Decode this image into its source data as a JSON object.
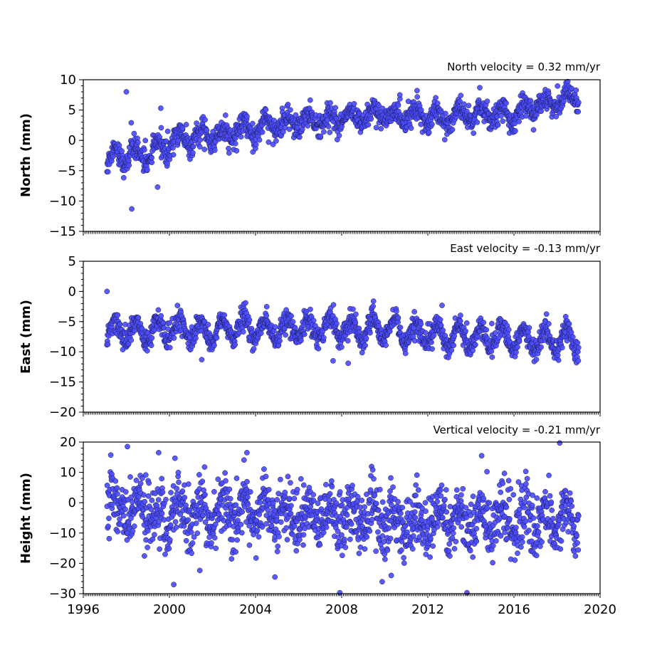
{
  "style": {
    "marker_fill": "#4c4cff",
    "marker_edge": "#1a1a4a",
    "background": "#ffffff"
  },
  "chart_data": [
    {
      "type": "scatter",
      "id": "north",
      "title": "North velocity = 0.32 mm/yr",
      "xlabel": "",
      "ylabel": "North (mm)",
      "xlim": [
        1996,
        2020
      ],
      "ylim": [
        -15,
        10
      ],
      "yticks": [
        10,
        5,
        0,
        -5,
        -10,
        -15
      ],
      "ytick_labels": [
        "10",
        "5",
        "0",
        "−5",
        "−10",
        "−15"
      ],
      "xticks": [
        1996,
        2000,
        2004,
        2008,
        2012,
        2016,
        2020
      ],
      "xtick_labels": [],
      "series": [
        {
          "x": [
            1997.1,
            1997.5,
            1997.9,
            1998.2,
            1998.6,
            1999.0,
            1999.5,
            2000.0,
            2000.5,
            2001.0,
            2001.5,
            2002.0,
            2002.5,
            2003.0,
            2003.5,
            2004.0,
            2004.5,
            2005.0,
            2005.5,
            2006.0,
            2006.5,
            2007.0,
            2007.5,
            2008.0,
            2008.5,
            2009.0,
            2009.5,
            2010.0,
            2010.5,
            2011.0,
            2011.5,
            2012.0,
            2012.5,
            2013.0,
            2013.5,
            2014.0,
            2014.5,
            2015.0,
            2015.5,
            2016.0,
            2016.5,
            2017.0,
            2017.5,
            2018.0,
            2018.5,
            2019.0
          ],
          "y": [
            -3.5,
            -2.0,
            -3.0,
            -1.5,
            -3.0,
            -2.5,
            -1.5,
            -0.5,
            0.5,
            0.2,
            0.8,
            1.0,
            0.5,
            1.5,
            2.0,
            1.5,
            2.5,
            2.8,
            2.5,
            3.2,
            3.0,
            3.5,
            3.0,
            3.8,
            3.5,
            4.0,
            4.2,
            4.5,
            3.5,
            4.0,
            3.8,
            4.2,
            3.5,
            4.0,
            4.2,
            4.0,
            4.5,
            4.8,
            4.0,
            4.5,
            5.0,
            6.0,
            5.5,
            6.5,
            6.2,
            7.5
          ],
          "outliers": [
            [
              1998.0,
              8.0
            ],
            [
              1998.25,
              -11.3
            ],
            [
              1999.6,
              5.3
            ],
            [
              1999.45,
              -7.7
            ],
            [
              2010.7,
              7.5
            ],
            [
              2011.5,
              8.2
            ]
          ]
        }
      ]
    },
    {
      "type": "scatter",
      "id": "east",
      "title": "East velocity = -0.13 mm/yr",
      "xlabel": "",
      "ylabel": "East (mm)",
      "xlim": [
        1996,
        2020
      ],
      "ylim": [
        -20,
        5
      ],
      "yticks": [
        5,
        0,
        -5,
        -10,
        -15,
        -20
      ],
      "ytick_labels": [
        "5",
        "0",
        "−5",
        "−10",
        "−15",
        "−20"
      ],
      "xticks": [
        1996,
        2000,
        2004,
        2008,
        2012,
        2016,
        2020
      ],
      "xtick_labels": [],
      "series": [
        {
          "x": [
            1997.1,
            1998.0,
            1999.0,
            2000.0,
            2001.0,
            2002.0,
            2003.0,
            2004.0,
            2005.0,
            2006.0,
            2007.0,
            2008.0,
            2009.0,
            2010.0,
            2011.0,
            2012.0,
            2013.0,
            2014.0,
            2015.0,
            2016.0,
            2017.0,
            2018.0,
            2019.0
          ],
          "y": [
            -6.5,
            -6.5,
            -6.8,
            -6.0,
            -6.5,
            -6.8,
            -6.0,
            -6.2,
            -6.5,
            -6.2,
            -5.8,
            -6.0,
            -6.5,
            -6.2,
            -7.0,
            -7.2,
            -7.3,
            -7.5,
            -7.5,
            -7.8,
            -8.0,
            -8.0,
            -8.2
          ],
          "outliers": [
            [
              1997.1,
              0.0
            ],
            [
              2007.6,
              -11.5
            ],
            [
              2008.3,
              -11.9
            ],
            [
              2001.5,
              -11.3
            ]
          ]
        }
      ]
    },
    {
      "type": "scatter",
      "id": "height",
      "title": "Vertical velocity = -0.21 mm/yr",
      "xlabel": "",
      "ylabel": "Height (mm)",
      "xlim": [
        1996,
        2020
      ],
      "ylim": [
        -30,
        20
      ],
      "yticks": [
        20,
        10,
        0,
        -10,
        -20,
        -30
      ],
      "ytick_labels": [
        "20",
        "10",
        "0",
        "−10",
        "−20",
        "−30"
      ],
      "xticks": [
        1996,
        2000,
        2004,
        2008,
        2012,
        2016,
        2020
      ],
      "xtick_labels": [
        "1996",
        "2000",
        "2004",
        "2008",
        "2012",
        "2016",
        "2020"
      ],
      "series": [
        {
          "x": [
            1997.1,
            1998.0,
            1999.0,
            2000.0,
            2001.0,
            2002.0,
            2003.0,
            2004.0,
            2005.0,
            2006.0,
            2007.0,
            2008.0,
            2009.0,
            2010.0,
            2011.0,
            2012.0,
            2013.0,
            2014.0,
            2015.0,
            2016.0,
            2017.0,
            2018.0,
            2019.0
          ],
          "y": [
            -1.0,
            -2.0,
            -3.0,
            -5.0,
            -4.0,
            -3.5,
            -2.0,
            -4.0,
            -3.5,
            -4.0,
            -4.5,
            -5.0,
            -5.0,
            -5.5,
            -6.0,
            -5.5,
            -5.0,
            -5.5,
            -6.0,
            -6.0,
            -6.0,
            -5.5,
            -7.0
          ],
          "outliers": [
            [
              1998.05,
              18.5
            ],
            [
              2000.2,
              -27.0
            ],
            [
              2004.9,
              -24.5
            ],
            [
              2010.3,
              -24.0
            ],
            [
              2014.5,
              15.5
            ],
            [
              2003.6,
              16.5
            ],
            [
              1999.5,
              16.5
            ]
          ]
        }
      ]
    }
  ]
}
